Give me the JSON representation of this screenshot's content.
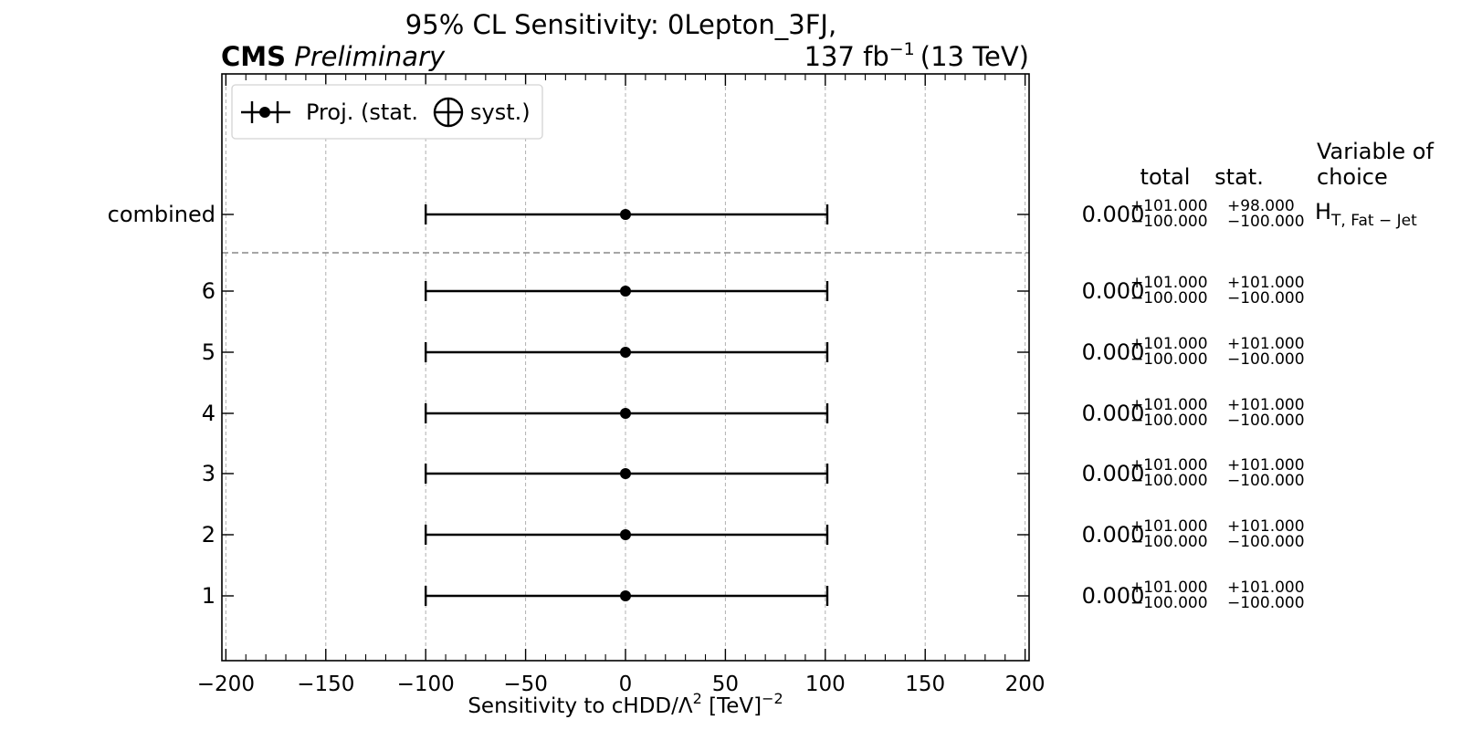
{
  "header": {
    "title": "95% CL Sensitivity: 0Lepton_3FJ,",
    "experiment": "CMS",
    "status": "Preliminary",
    "lumi_value": "137 fb",
    "lumi_exp": "−1",
    "energy": "(13 TeV)"
  },
  "legend": {
    "label_before": "Proj. (stat.",
    "label_after": "syst.)"
  },
  "table": {
    "col_total": "total",
    "col_stat": "stat.",
    "col_var_line1": "Variable of",
    "col_var_line2": "choice",
    "variable_main": "H",
    "variable_sub": "T, Fat − Jet"
  },
  "axes": {
    "xlabel_pre": "Sensitivity to cHDD/Λ",
    "xlabel_exp1": "2",
    "xlabel_mid": " [TeV]",
    "xlabel_exp2": "−2"
  },
  "chart_data": {
    "type": "scatter",
    "subtype": "horizontal error bars",
    "xlim": [
      -202,
      202
    ],
    "xticks": [
      -200,
      -150,
      -100,
      -50,
      0,
      50,
      100,
      150,
      200
    ],
    "xtick_labels": [
      "−200",
      "−150",
      "−100",
      "−50",
      "0",
      "50",
      "100",
      "150",
      "200"
    ],
    "grid": "vertical dashed",
    "legend_position": "top-left",
    "rows": [
      {
        "label": "combined",
        "value": 0.0,
        "err_up": 101.0,
        "err_down": 100.0,
        "central_text": "0.000",
        "total_up": "+101.000",
        "total_down": "−100.000",
        "stat_up": "+98.000",
        "stat_down": "−100.000"
      },
      {
        "label": "6",
        "value": 0.0,
        "err_up": 101.0,
        "err_down": 100.0,
        "central_text": "0.000",
        "total_up": "+101.000",
        "total_down": "−100.000",
        "stat_up": "+101.000",
        "stat_down": "−100.000"
      },
      {
        "label": "5",
        "value": 0.0,
        "err_up": 101.0,
        "err_down": 100.0,
        "central_text": "0.000",
        "total_up": "+101.000",
        "total_down": "−100.000",
        "stat_up": "+101.000",
        "stat_down": "−100.000"
      },
      {
        "label": "4",
        "value": 0.0,
        "err_up": 101.0,
        "err_down": 100.0,
        "central_text": "0.000",
        "total_up": "+101.000",
        "total_down": "−100.000",
        "stat_up": "+101.000",
        "stat_down": "−100.000"
      },
      {
        "label": "3",
        "value": 0.0,
        "err_up": 101.0,
        "err_down": 100.0,
        "central_text": "0.000",
        "total_up": "+101.000",
        "total_down": "−100.000",
        "stat_up": "+101.000",
        "stat_down": "−100.000"
      },
      {
        "label": "2",
        "value": 0.0,
        "err_up": 101.0,
        "err_down": 100.0,
        "central_text": "0.000",
        "total_up": "+101.000",
        "total_down": "−100.000",
        "stat_up": "+101.000",
        "stat_down": "−100.000"
      },
      {
        "label": "1",
        "value": 0.0,
        "err_up": 101.0,
        "err_down": 100.0,
        "central_text": "0.000",
        "total_up": "+101.000",
        "total_down": "−100.000",
        "stat_up": "+101.000",
        "stat_down": "−100.000"
      }
    ]
  }
}
